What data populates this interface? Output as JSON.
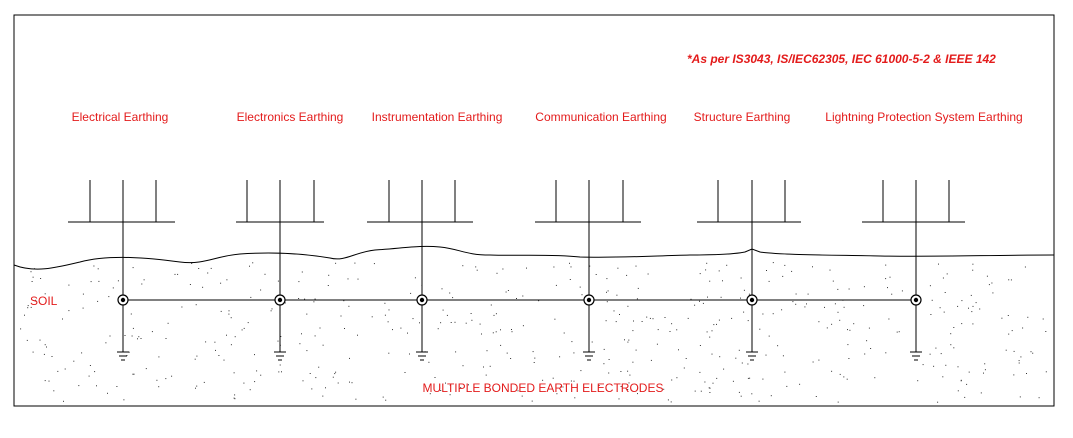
{
  "note": "*As per IS3043, IS/IEC62305, IEC 61000-5-2 & IEEE 142",
  "soil_label": "SOIL",
  "bottom_label": "MULTIPLE BONDED EARTH ELECTRODES",
  "systems": [
    {
      "label": "Electrical Earthing"
    },
    {
      "label": "Electronics Earthing"
    },
    {
      "label": "Instrumentation Earthing"
    },
    {
      "label": "Communication Earthing"
    },
    {
      "label": "Structure Earthing"
    },
    {
      "label": "Lightning Protection System Earthing"
    }
  ],
  "colors": {
    "text": "#e31b1b",
    "lines": "#000000"
  }
}
